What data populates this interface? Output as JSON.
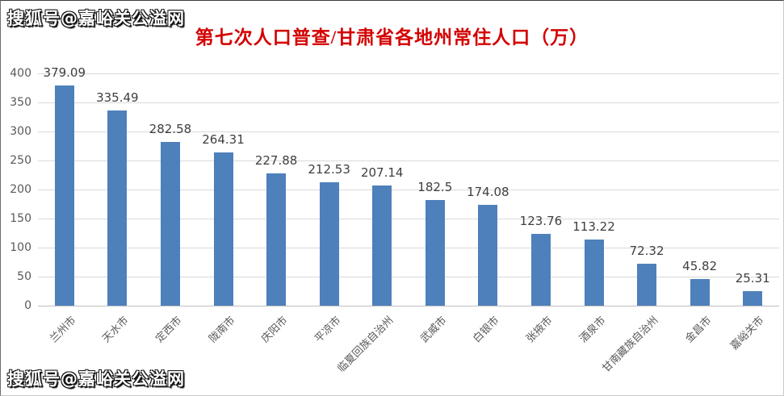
{
  "watermark": {
    "top": "搜狐号@嘉峪关公溢网",
    "bottom": "搜狐号@嘉峪关公溢网"
  },
  "chart_data": {
    "type": "bar",
    "title": "第七次人口普查/甘肃省各地州常住人口（万）",
    "categories": [
      "兰州市",
      "天水市",
      "定西市",
      "陇南市",
      "庆阳市",
      "平凉市",
      "临夏回族自治州",
      "武威市",
      "白银市",
      "张掖市",
      "酒泉市",
      "甘南藏族自治州",
      "金昌市",
      "嘉峪关市"
    ],
    "values": [
      379.09,
      335.49,
      282.58,
      264.31,
      227.88,
      212.53,
      207.14,
      182.5,
      174.08,
      123.76,
      113.22,
      72.32,
      45.82,
      25.31
    ],
    "value_labels": [
      "379.09",
      "335.49",
      "282.58",
      "264.31",
      "227.88",
      "212.53",
      "207.14",
      "182.5",
      "174.08",
      "123.76",
      "113.22",
      "72.32",
      "45.82",
      "25.31"
    ],
    "xlabel": "",
    "ylabel": "",
    "ylim": [
      0,
      400
    ],
    "ytick_interval": 50,
    "yticks": [
      0,
      50,
      100,
      150,
      200,
      250,
      300,
      350,
      400
    ],
    "grid": true,
    "legend": "none",
    "bar_color": "#4e80bc",
    "title_color": "#d40000",
    "value_label_color": "#3f3f3f",
    "axis_text_color": "#595959",
    "gridline_color": "#d9d9d9"
  }
}
